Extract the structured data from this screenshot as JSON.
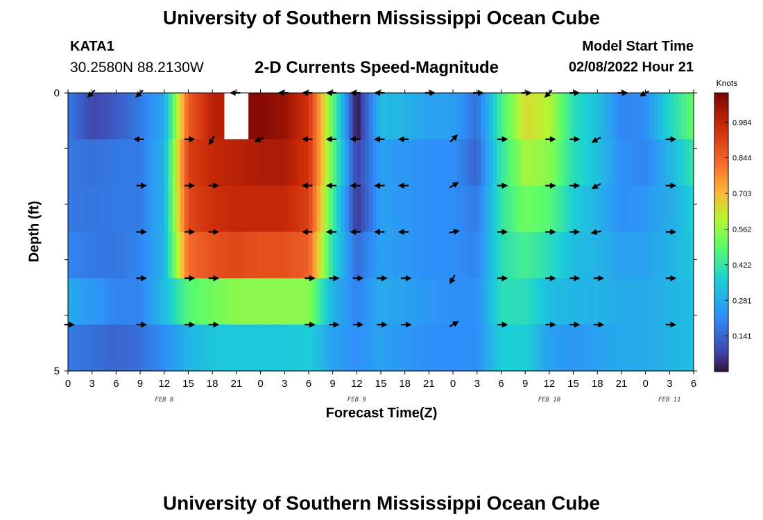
{
  "header": {
    "title": "University of Southern Mississippi Ocean Cube",
    "station": "KATA1",
    "coords": "30.2580N  88.2130W",
    "subtitle": "2-D Currents Speed-Magnitude",
    "model_start_label": "Model Start Time",
    "model_start_value": "02/08/2022 Hour 21"
  },
  "footer": {
    "title": "University of Southern Mississippi Ocean Cube"
  },
  "chart_data": {
    "type": "heatmap",
    "xlabel": "Forecast Time(Z)",
    "ylabel": "Depth (ft)",
    "y_tick_labels": [
      "0",
      "",
      "",
      "",
      "",
      "5"
    ],
    "x_tick_labels": [
      "0",
      "3",
      "6",
      "9",
      "12",
      "15",
      "18",
      "21",
      "0",
      "3",
      "6",
      "9",
      "12",
      "15",
      "18",
      "21",
      "0",
      "3",
      "6",
      "9",
      "12",
      "15",
      "18",
      "21",
      "0",
      "3",
      "6"
    ],
    "date_labels": [
      {
        "text": "FEB 8",
        "hour_index": 4
      },
      {
        "text": "FEB 9",
        "hour_index": 12
      },
      {
        "text": "FEB 10",
        "hour_index": 20
      },
      {
        "text": "FEB 11",
        "hour_index": 25
      }
    ],
    "colorbar": {
      "units": "Knots",
      "min": 0.0,
      "max": 1.1,
      "ticks": [
        "0.984",
        "0.844",
        "0.703",
        "0.562",
        "0.422",
        "0.281",
        "0.141"
      ],
      "tick_values": [
        0.984,
        0.844,
        0.703,
        0.562,
        0.422,
        0.281,
        0.141
      ]
    },
    "x_hours": [
      0,
      3,
      6,
      9,
      12,
      15,
      18,
      21,
      24,
      27,
      30,
      33,
      36,
      39,
      42,
      45,
      48,
      51,
      54,
      57,
      60,
      63,
      66,
      69,
      72,
      75,
      78
    ],
    "depth_rows": [
      [
        0.18,
        0.08,
        0.12,
        0.18,
        0.28,
        0.85,
        1.0,
        null,
        1.08,
        1.05,
        0.95,
        0.5,
        0.0,
        0.32,
        0.3,
        0.26,
        0.26,
        0.16,
        0.45,
        0.65,
        0.6,
        0.4,
        0.33,
        0.2,
        0.22,
        0.38,
        0.5
      ],
      [
        0.18,
        0.16,
        0.18,
        0.18,
        0.3,
        0.92,
        0.98,
        1.0,
        1.02,
        1.02,
        0.95,
        0.5,
        0.07,
        0.26,
        0.24,
        0.22,
        0.22,
        0.14,
        0.42,
        0.58,
        0.55,
        0.4,
        0.33,
        0.22,
        0.2,
        0.3,
        0.42
      ],
      [
        0.18,
        0.17,
        0.18,
        0.18,
        0.3,
        0.9,
        0.96,
        0.98,
        0.98,
        0.98,
        0.92,
        0.45,
        0.05,
        0.26,
        0.24,
        0.22,
        0.22,
        0.18,
        0.42,
        0.52,
        0.48,
        0.36,
        0.3,
        0.22,
        0.24,
        0.28,
        0.36
      ],
      [
        0.2,
        0.18,
        0.17,
        0.2,
        0.3,
        0.82,
        0.88,
        0.9,
        0.88,
        0.88,
        0.85,
        0.4,
        0.15,
        0.26,
        0.24,
        0.22,
        0.22,
        0.2,
        0.4,
        0.45,
        0.4,
        0.32,
        0.3,
        0.26,
        0.26,
        0.3,
        0.34
      ],
      [
        0.28,
        0.24,
        0.2,
        0.2,
        0.32,
        0.48,
        0.52,
        0.55,
        0.55,
        0.55,
        0.55,
        0.3,
        0.2,
        0.28,
        0.26,
        0.24,
        0.22,
        0.22,
        0.4,
        0.4,
        0.32,
        0.3,
        0.3,
        0.28,
        0.28,
        0.3,
        0.32
      ],
      [
        0.18,
        0.16,
        0.14,
        0.16,
        0.22,
        0.3,
        0.34,
        0.34,
        0.34,
        0.34,
        0.36,
        0.26,
        0.22,
        0.26,
        0.24,
        0.22,
        0.22,
        0.22,
        0.36,
        0.36,
        0.26,
        0.24,
        0.26,
        0.28,
        0.28,
        0.3,
        0.32
      ]
    ],
    "arrow_hours": [
      0,
      3,
      6,
      9,
      12,
      15,
      18,
      21,
      24,
      27,
      30,
      33,
      36,
      39,
      42,
      45,
      48,
      51,
      54,
      57,
      60,
      63,
      66,
      69,
      72,
      75,
      78
    ],
    "arrow_dirs_deg": [
      [
        null,
        135,
        null,
        135,
        null,
        null,
        null,
        180,
        null,
        180,
        180,
        180,
        180,
        180,
        null,
        360,
        null,
        0,
        null,
        0,
        135,
        0,
        null,
        0,
        150,
        null,
        null
      ],
      [
        null,
        null,
        null,
        180,
        null,
        0,
        120,
        null,
        160,
        null,
        180,
        180,
        180,
        180,
        180,
        null,
        315,
        null,
        0,
        null,
        0,
        0,
        150,
        null,
        null,
        0,
        null
      ],
      [
        null,
        null,
        null,
        0,
        null,
        0,
        0,
        null,
        null,
        null,
        180,
        180,
        180,
        180,
        180,
        null,
        330,
        null,
        0,
        null,
        0,
        0,
        150,
        null,
        null,
        0,
        null
      ],
      [
        null,
        null,
        null,
        0,
        null,
        0,
        0,
        null,
        null,
        null,
        180,
        180,
        180,
        180,
        180,
        null,
        350,
        null,
        0,
        null,
        0,
        0,
        170,
        null,
        null,
        0,
        null
      ],
      [
        null,
        null,
        null,
        0,
        null,
        0,
        0,
        null,
        null,
        null,
        0,
        0,
        0,
        0,
        0,
        null,
        120,
        null,
        0,
        null,
        0,
        0,
        0,
        null,
        null,
        0,
        null
      ],
      [
        0,
        null,
        null,
        0,
        null,
        0,
        0,
        null,
        null,
        null,
        0,
        0,
        0,
        0,
        0,
        null,
        330,
        null,
        0,
        null,
        0,
        0,
        0,
        null,
        null,
        0,
        null
      ]
    ]
  }
}
